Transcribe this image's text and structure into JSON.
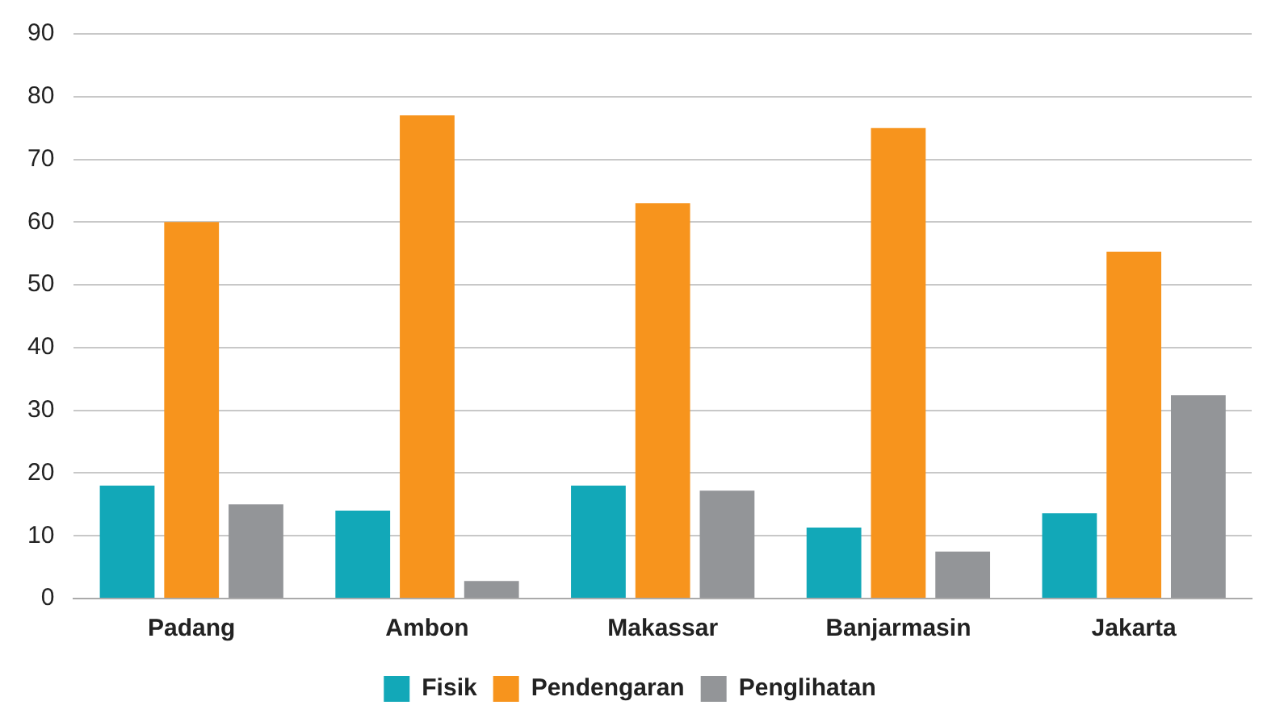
{
  "chart_data": {
    "type": "bar",
    "categories": [
      "Padang",
      "Ambon",
      "Makassar",
      "Banjarmasin",
      "Jakarta"
    ],
    "series": [
      {
        "name": "Fisik",
        "color": "#12a8b8",
        "values": [
          18,
          14,
          18,
          11.3,
          13.6
        ]
      },
      {
        "name": "Pendengaran",
        "color": "#f7941d",
        "values": [
          60,
          77,
          63,
          75,
          55.3
        ]
      },
      {
        "name": "Penglihatan",
        "color": "#939598",
        "values": [
          15,
          2.8,
          17.2,
          7.5,
          32.4
        ]
      }
    ],
    "ylim": [
      0,
      90
    ],
    "yticks": [
      0,
      10,
      20,
      30,
      40,
      50,
      60,
      70,
      80,
      90
    ],
    "grid": "y",
    "legend": "bottom"
  }
}
